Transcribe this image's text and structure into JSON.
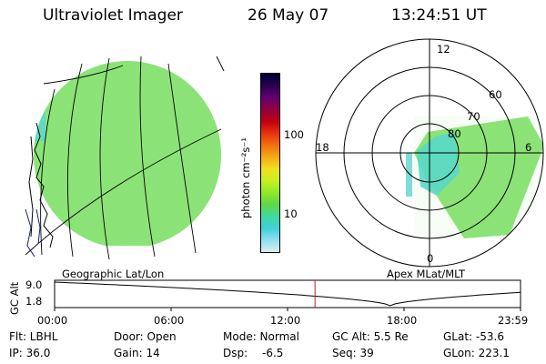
{
  "header": {
    "instrument": "Ultraviolet Imager",
    "date": "26 May 07",
    "time": "13:24:51 UT"
  },
  "colorbar": {
    "unit_label": "photon cm⁻²s⁻¹",
    "scale": "log",
    "ticks": [
      "100",
      "10"
    ],
    "colors": [
      "#000030",
      "#2a0050",
      "#600070",
      "#900040",
      "#c00010",
      "#e83010",
      "#f07010",
      "#f5a818",
      "#f0e020",
      "#c8f020",
      "#90e828",
      "#60d848",
      "#40d8a0",
      "#40d0d8",
      "#90e0f0",
      "#dcecf0"
    ]
  },
  "left_panel": {
    "title": "Geographic Lat/Lon",
    "fill_color": "#7fe070"
  },
  "polar_panel": {
    "title": "Apex MLat/MLT",
    "mlt_labels": {
      "top": "12",
      "left": "18",
      "right": "6",
      "bottom": "0"
    },
    "lat_labels": [
      "60",
      "70",
      "80"
    ]
  },
  "altitude_plot": {
    "ylabel": "GC Alt",
    "y_ticks": [
      "9.0",
      "1.8"
    ],
    "x_ticks": [
      "00:00",
      "06:00",
      "12:00",
      "18:00",
      "23:59"
    ],
    "marker_time": "13:24:51",
    "marker_color": "#c02020"
  },
  "footer": {
    "row1": {
      "filter": "Flt: LBHL",
      "door": "Door: Open",
      "mode": "Mode: Normal",
      "gc_alt": "GC Alt: 5.5 Re",
      "glat": "GLat: -53.6"
    },
    "row2": {
      "ip": "IP: 36.0",
      "gain": "Gain: 14",
      "dsp_label": "Dsp:",
      "dsp_value": "-6.5",
      "seq": "Seq: 39",
      "glon": "GLon: 223.1"
    }
  }
}
